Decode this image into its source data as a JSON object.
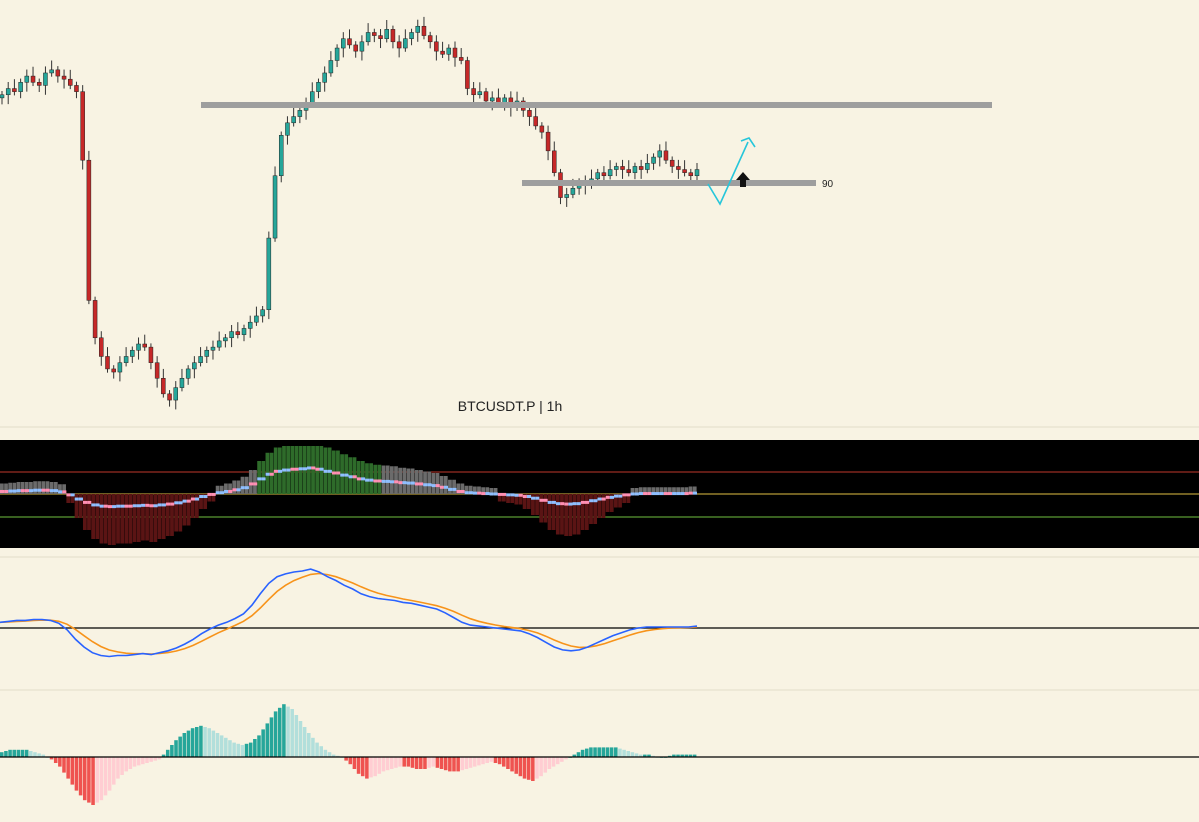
{
  "symbol_label": "BTCUSDT.P | 1h",
  "levels": [
    {
      "name": "upper-resistance",
      "label": ""
    },
    {
      "name": "lower-resistance",
      "label": "90"
    }
  ],
  "colors": {
    "background": "#f8f3e3",
    "bull_candle": "#26a69a",
    "bear_candle": "#c62828",
    "level_line": "#9e9e9e",
    "projection": "#26c6da",
    "macd_line": "#2962ff",
    "signal_line": "#f7931a",
    "hist_pos_strong": "#26a69a",
    "hist_pos_weak": "#b2dfdb",
    "hist_neg_strong": "#ef5350",
    "hist_neg_weak": "#ffcdd2",
    "osc_pane_bg": "#000000"
  },
  "icons": {
    "breakout_arrow": "up-arrow-icon"
  },
  "chart_data": [
    {
      "type": "candlestick",
      "title": "BTCUSDT.P | 1h",
      "levels": [
        {
          "value": null,
          "label": ""
        },
        {
          "value": 90,
          "label": "90"
        }
      ],
      "close": [
        106,
        108,
        107,
        110,
        112,
        110,
        109,
        113,
        114,
        112,
        111,
        109,
        107,
        85,
        40,
        28,
        22,
        18,
        17,
        20,
        22,
        24,
        26,
        25,
        20,
        15,
        10,
        8,
        12,
        15,
        18,
        20,
        22,
        24,
        25,
        27,
        28,
        30,
        29,
        31,
        33,
        35,
        37,
        60,
        80,
        93,
        97,
        99,
        101,
        103,
        107,
        110,
        113,
        117,
        121,
        124,
        122,
        120,
        123,
        126,
        125,
        124,
        127,
        123,
        121,
        124,
        126,
        128,
        125,
        123,
        120,
        119,
        121,
        118,
        117,
        108,
        106,
        107,
        104,
        105,
        103,
        105,
        102,
        104,
        101,
        99,
        96,
        94,
        88,
        81,
        73,
        74,
        76,
        78,
        77,
        79,
        81,
        80,
        82,
        83,
        82,
        81,
        83,
        82,
        84,
        86,
        88,
        85,
        83,
        82,
        81,
        80,
        82
      ]
    },
    {
      "type": "line",
      "series": [
        {
          "name": "",
          "values": [
            0.6,
            0.7,
            0.8,
            0.8,
            0.9,
            0.9,
            0.8,
            0.5,
            -0.2,
            -1.2,
            -2.0,
            -2.6,
            -2.9,
            -3.0,
            -2.9,
            -2.9,
            -2.8,
            -2.7,
            -2.8,
            -2.6,
            -2.4,
            -2.1,
            -1.7,
            -1.2,
            -0.6,
            -0.1,
            0.3,
            0.6,
            1.0,
            1.5,
            2.4,
            3.6,
            4.7,
            5.4,
            5.7,
            5.9,
            6.0,
            6.2,
            5.9,
            5.4,
            5.0,
            4.5,
            4.1,
            3.6,
            3.3,
            3.1,
            3.0,
            2.9,
            2.7,
            2.6,
            2.4,
            2.2,
            2.0,
            1.6,
            1.1,
            0.6,
            0.3,
            0.2,
            0.1,
            0.0,
            -0.1,
            -0.2,
            -0.3,
            -0.6,
            -1.0,
            -1.5,
            -2.0,
            -2.3,
            -2.4,
            -2.3,
            -2.0,
            -1.6,
            -1.2,
            -0.8,
            -0.5,
            -0.2,
            0.0,
            0.1,
            0.1,
            0.1,
            0.1,
            0.1,
            0.1,
            0.2
          ]
        }
      ]
    },
    {
      "type": "bar",
      "series": [
        {
          "name": "",
          "values": [
            0.2,
            0.3,
            0.3,
            0.3,
            0.2,
            0.1,
            -0.1,
            -0.4,
            -0.9,
            -1.4,
            -1.8,
            -2.0,
            -1.8,
            -1.4,
            -0.9,
            -0.6,
            -0.4,
            -0.3,
            -0.2,
            -0.1,
            0.3,
            0.7,
            1.0,
            1.2,
            1.3,
            1.2,
            1.0,
            0.8,
            0.6,
            0.5,
            0.6,
            0.9,
            1.4,
            1.9,
            2.2,
            2.0,
            1.5,
            1.0,
            0.6,
            0.3,
            0.1,
            0.0,
            -0.3,
            -0.7,
            -0.9,
            -0.8,
            -0.6,
            -0.5,
            -0.4,
            -0.4,
            -0.5,
            -0.5,
            -0.4,
            -0.5,
            -0.6,
            -0.6,
            -0.5,
            -0.4,
            -0.3,
            -0.2,
            -0.3,
            -0.5,
            -0.7,
            -0.9,
            -1.0,
            -0.8,
            -0.5,
            -0.3,
            -0.1,
            0.1,
            0.3,
            0.4,
            0.4,
            0.4,
            0.4,
            0.3,
            0.2,
            0.1,
            0.1,
            0.0,
            0.0,
            0.1,
            0.1,
            0.1
          ]
        }
      ]
    }
  ]
}
